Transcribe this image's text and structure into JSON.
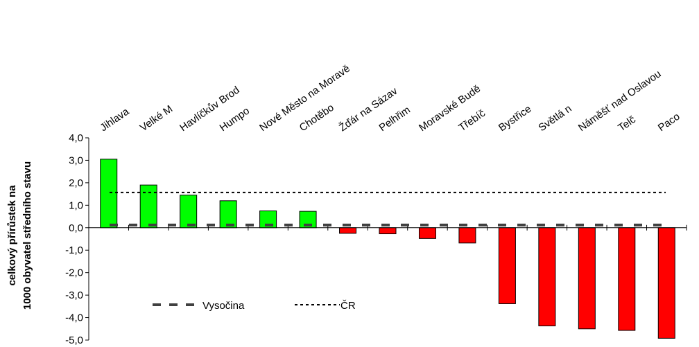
{
  "chart_data": {
    "type": "bar",
    "categories": [
      "Jihlava",
      "Velké Meziříčí",
      "Havlíčkův Brod",
      "Humpolec",
      "Nové Město na Moravě",
      "Chotěboř",
      "Žďár nad Sázavou",
      "Pelhřimov",
      "Moravské Budějovice",
      "Třebíč",
      "Bystřice nad Pernštejnem",
      "Světlá nad Sázavou",
      "Náměšť nad Oslavou",
      "Telč",
      "Pacov"
    ],
    "visible_category_labels": [
      "Jihlava",
      "Velké M",
      "Havlíčkův Brod",
      "Humpo",
      "Nové Město na Moravě",
      "Chotěbo",
      "Žďár na Sázav",
      "Pelhřim",
      "Moravské Budě",
      "Třebíč",
      "Bystřice",
      "Světlá n",
      "Náměšť nad Oslavou",
      "Telč",
      "Paco"
    ],
    "values": [
      3.05,
      1.9,
      1.45,
      1.2,
      0.75,
      0.73,
      -0.25,
      -0.27,
      -0.48,
      -0.68,
      -3.38,
      -4.37,
      -4.5,
      -4.57,
      -4.92
    ],
    "positive_color": "#00ff00",
    "negative_color": "#ff0000",
    "ylabel_lines": [
      "celkový přírůstek na",
      "1000 obyvatel středního stavu"
    ],
    "ylim": [
      -5.0,
      4.0
    ],
    "yticks": [
      "4,0",
      "3,0",
      "2,0",
      "1,0",
      "0,0",
      "-1,0",
      "-2,0",
      "-3,0",
      "-4,0",
      "-5,0"
    ],
    "reference_lines": [
      {
        "name": "Vysočina",
        "value": 0.12,
        "style": "dashed-thick",
        "color": "#404040"
      },
      {
        "name": "ČR",
        "value": 1.57,
        "style": "dotted",
        "color": "#000000"
      }
    ],
    "legend": {
      "position": "bottom-left",
      "entries": [
        "Vysočina",
        "ČR"
      ]
    },
    "grid": false
  }
}
